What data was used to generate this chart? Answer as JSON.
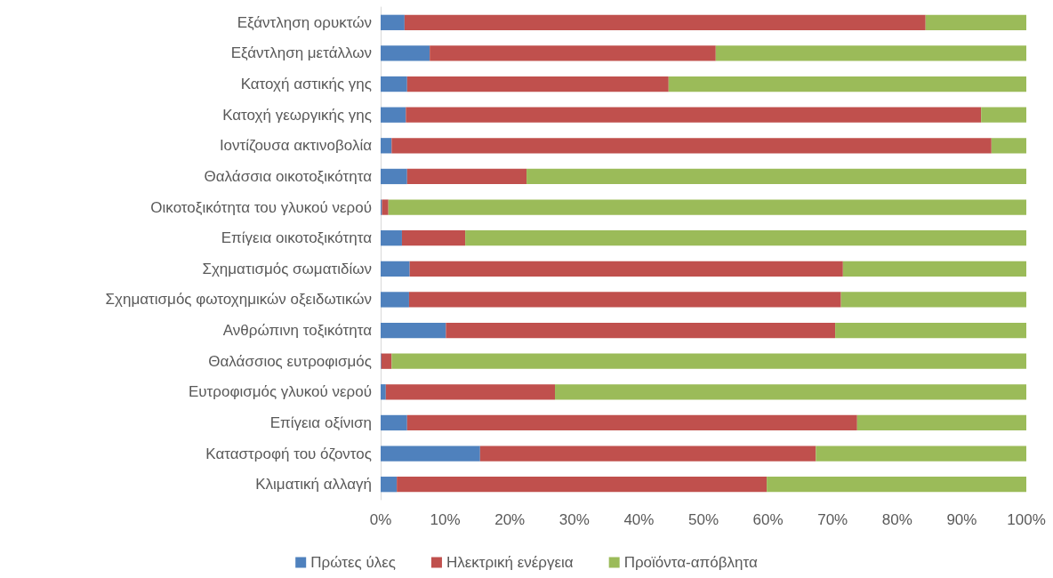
{
  "chart_data": {
    "type": "bar",
    "orientation": "horizontal",
    "stacked": true,
    "categories": [
      "Εξάντληση ορυκτών",
      "Εξάντληση μετάλλων",
      "Κατοχή αστικής γης",
      "Κατοχή γεωργικής γης",
      "Ιοντίζουσα ακτινοβολία",
      "Θαλάσσια οικοτοξικότητα",
      "Οικοτοξικότητα του γλυκού νερού",
      "Επίγεια οικοτοξικότητα",
      "Σχηματισμός σωματιδίων",
      "Σχηματισμός φωτοχημικών οξειδωτικών",
      "Ανθρώπινη τοξικότητα",
      "Θαλάσσιος ευτροφισμός",
      "Ευτροφισμός γλυκού νερού",
      "Επίγεια οξίνιση",
      "Καταστροφή του όζοντος",
      "Κλιματική αλλαγή"
    ],
    "series": [
      {
        "name": "Πρώτες ύλες",
        "color": "#4f81bd",
        "values": [
          3.7,
          7.6,
          4.1,
          3.9,
          1.7,
          4.1,
          0.2,
          3.3,
          4.5,
          4.4,
          10.1,
          0.1,
          0.8,
          4.1,
          15.4,
          2.5
        ]
      },
      {
        "name": "Ηλεκτρική ενέργεια",
        "color": "#c0504d",
        "values": [
          80.7,
          44.3,
          40.5,
          89.1,
          92.9,
          18.5,
          1.0,
          9.8,
          67.1,
          66.9,
          60.3,
          1.6,
          26.2,
          69.7,
          52.0,
          57.3
        ]
      },
      {
        "name": "Προϊόντα-απόβλητα",
        "color": "#9bbb59",
        "values": [
          15.6,
          48.1,
          55.4,
          7.0,
          5.4,
          77.4,
          98.8,
          86.9,
          28.4,
          28.7,
          29.6,
          98.3,
          73.0,
          26.2,
          32.6,
          40.2
        ]
      }
    ],
    "xlim": [
      0,
      100
    ],
    "xticks": [
      {
        "value": 0,
        "label": "0%"
      },
      {
        "value": 10,
        "label": "10%"
      },
      {
        "value": 20,
        "label": "20%"
      },
      {
        "value": 30,
        "label": "30%"
      },
      {
        "value": 40,
        "label": "40%"
      },
      {
        "value": 50,
        "label": "50%"
      },
      {
        "value": 60,
        "label": "60%"
      },
      {
        "value": 70,
        "label": "70%"
      },
      {
        "value": 80,
        "label": "80%"
      },
      {
        "value": 90,
        "label": "90%"
      },
      {
        "value": 100,
        "label": "100%"
      }
    ],
    "grid": false,
    "legend": "bottom"
  }
}
